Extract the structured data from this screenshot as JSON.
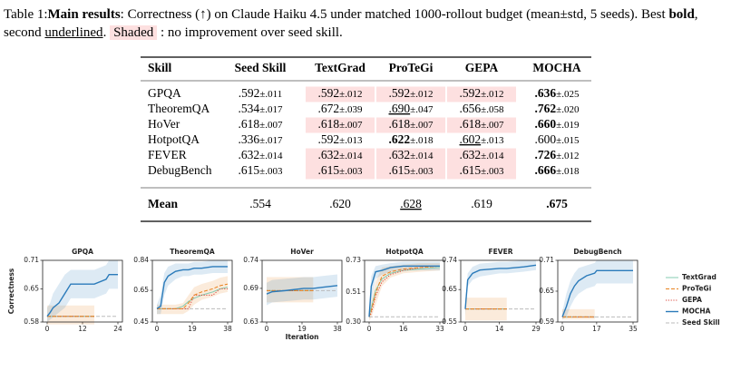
{
  "caption": [
    {
      "text": "Table 1:"
    },
    {
      "text": "Main results",
      "style": "bold"
    },
    {
      "text": ": Correctness (↑) on Claude Haiku 4.5 under matched 1000-rollout budget (mean±std, 5 seeds). Best "
    },
    {
      "text": "bold",
      "style": "bold"
    },
    {
      "text": ", second "
    },
    {
      "text": "underlined",
      "style": "underline"
    },
    {
      "text": ". "
    },
    {
      "text": "Shaded",
      "style": "shaded"
    },
    {
      "text": " : no improvement over seed skill."
    }
  ],
  "table": {
    "header": [
      "Skill",
      "Seed Skill",
      "TextGrad",
      "ProTeGi",
      "GEPA",
      "MOCHA"
    ],
    "rows": [
      [
        "GPQA",
        {
          "mean": ".592",
          "std": "±.011"
        },
        {
          "mean": ".592",
          "std": "±.012",
          "style": "shaded"
        },
        {
          "mean": ".592",
          "std": "±.012",
          "style": "shaded"
        },
        {
          "mean": ".592",
          "std": "±.012",
          "style": "shaded"
        },
        {
          "mean": ".636",
          "std": "±.025",
          "style": "bold"
        }
      ],
      [
        "TheoremQA",
        {
          "mean": ".534",
          "std": "±.017"
        },
        {
          "mean": ".672",
          "std": "±.039"
        },
        {
          "mean": ".690",
          "std": "±.047",
          "style": "underline"
        },
        {
          "mean": ".656",
          "std": "±.058"
        },
        {
          "mean": ".762",
          "std": "±.020",
          "style": "bold"
        }
      ],
      [
        "HoVer",
        {
          "mean": ".618",
          "std": "±.007"
        },
        {
          "mean": ".618",
          "std": "±.007",
          "style": "shaded"
        },
        {
          "mean": ".618",
          "std": "±.007",
          "style": "shaded"
        },
        {
          "mean": ".618",
          "std": "±.007",
          "style": "shaded"
        },
        {
          "mean": ".660",
          "std": "±.019",
          "style": "bold"
        }
      ],
      [
        "HotpotQA",
        {
          "mean": ".336",
          "std": "±.017"
        },
        {
          "mean": ".592",
          "std": "±.013"
        },
        {
          "mean": ".622",
          "std": "±.018",
          "style": "bold"
        },
        {
          "mean": ".602",
          "std": "±.013",
          "style": "underline"
        },
        {
          "mean": ".600",
          "std": "±.015"
        }
      ],
      [
        "FEVER",
        {
          "mean": ".632",
          "std": "±.014"
        },
        {
          "mean": ".632",
          "std": "±.014",
          "style": "shaded"
        },
        {
          "mean": ".632",
          "std": "±.014",
          "style": "shaded"
        },
        {
          "mean": ".632",
          "std": "±.014",
          "style": "shaded"
        },
        {
          "mean": ".726",
          "std": "±.012",
          "style": "bold"
        }
      ],
      [
        "DebugBench",
        {
          "mean": ".615",
          "std": "±.003"
        },
        {
          "mean": ".615",
          "std": "±.003",
          "style": "shaded"
        },
        {
          "mean": ".615",
          "std": "±.003",
          "style": "shaded"
        },
        {
          "mean": ".615",
          "std": "±.003",
          "style": "shaded"
        },
        {
          "mean": ".666",
          "std": "±.018",
          "style": "bold"
        }
      ]
    ],
    "footer": [
      "Mean",
      {
        "mean": ".554"
      },
      {
        "mean": ".620"
      },
      {
        "mean": ".628",
        "style": "underline"
      },
      {
        "mean": ".619"
      },
      {
        "mean": ".675",
        "style": "bold"
      }
    ]
  },
  "chart_data": [
    {
      "type": "line",
      "title": "GPQA",
      "ylabel": "Correctness",
      "x": [
        0,
        1,
        2,
        4,
        6,
        8,
        12,
        16,
        20,
        21,
        24
      ],
      "xlim": [
        0,
        24
      ],
      "xticks": [
        0,
        12,
        24
      ],
      "ylim": [
        0.58,
        0.71
      ],
      "yticks": [
        0.58,
        0.65,
        0.71
      ],
      "series": [
        {
          "name": "TextGrad",
          "color": "#86cbb2",
          "dash": "solid",
          "values": [
            0.592,
            0.592,
            0.592,
            0.592,
            0.592,
            0.592,
            0.592,
            0.592,
            null,
            null,
            null
          ]
        },
        {
          "name": "ProTeGi",
          "color": "#e8821e",
          "dash": "dashed",
          "values": [
            0.592,
            0.592,
            0.592,
            0.592,
            0.592,
            0.592,
            0.592,
            0.592,
            null,
            null,
            null
          ],
          "lower": [
            0.575,
            0.575,
            0.575,
            0.575,
            0.575,
            0.575,
            0.575,
            0.575,
            null,
            null,
            null
          ],
          "upper": [
            0.615,
            0.615,
            0.615,
            0.615,
            0.615,
            0.615,
            0.615,
            0.615,
            null,
            null,
            null
          ]
        },
        {
          "name": "GEPA",
          "color": "#d9453a",
          "dash": "dotted",
          "values": [
            0.592,
            0.592,
            0.592,
            0.592,
            0.592,
            0.592,
            0.592,
            0.592,
            null,
            null,
            null
          ]
        },
        {
          "name": "MOCHA",
          "color": "#2b7bba",
          "dash": "solid",
          "values": [
            0.592,
            0.6,
            0.61,
            0.62,
            0.64,
            0.66,
            0.66,
            0.66,
            0.67,
            0.68,
            0.68
          ],
          "lower": [
            0.58,
            0.585,
            0.59,
            0.6,
            0.61,
            0.63,
            0.63,
            0.63,
            0.64,
            0.65,
            0.65
          ],
          "upper": [
            0.61,
            0.62,
            0.64,
            0.66,
            0.68,
            0.69,
            0.69,
            0.69,
            0.7,
            0.71,
            0.71
          ]
        },
        {
          "name": "Seed Skill",
          "color": "#bbbbbb",
          "dash": "dashed",
          "values": [
            0.592,
            0.592,
            0.592,
            0.592,
            0.592,
            0.592,
            0.592,
            0.592,
            0.592,
            0.592,
            0.592
          ]
        }
      ]
    },
    {
      "type": "line",
      "title": "TheoremQA",
      "x": [
        0,
        2,
        4,
        6,
        10,
        14,
        17,
        20,
        24,
        30,
        34,
        38
      ],
      "xlim": [
        0,
        38
      ],
      "xticks": [
        0,
        19,
        38
      ],
      "ylim": [
        0.45,
        0.84
      ],
      "yticks": [
        0.45,
        0.65,
        0.84
      ],
      "series": [
        {
          "values": [
            0.534,
            0.534,
            0.534,
            0.534,
            0.534,
            0.55,
            0.58,
            0.6,
            0.62,
            0.64,
            0.66,
            0.67
          ]
        },
        {
          "values": [
            0.534,
            0.534,
            0.534,
            0.534,
            0.534,
            0.534,
            0.57,
            0.62,
            0.64,
            0.66,
            0.68,
            0.69
          ],
          "lower": [
            0.5,
            0.5,
            0.5,
            0.5,
            0.5,
            0.5,
            0.52,
            0.56,
            0.59,
            0.61,
            0.63,
            0.64
          ],
          "upper": [
            0.56,
            0.56,
            0.56,
            0.56,
            0.56,
            0.57,
            0.62,
            0.67,
            0.69,
            0.71,
            0.73,
            0.74
          ]
        },
        {
          "values": [
            0.534,
            0.534,
            0.534,
            0.534,
            0.534,
            0.534,
            0.534,
            0.62,
            0.62,
            0.62,
            0.66,
            0.66
          ]
        },
        {
          "values": [
            0.534,
            0.55,
            0.7,
            0.74,
            0.77,
            0.78,
            0.78,
            0.79,
            0.79,
            0.8,
            0.8,
            0.8
          ],
          "lower": [
            0.5,
            0.5,
            0.62,
            0.68,
            0.72,
            0.74,
            0.74,
            0.75,
            0.75,
            0.76,
            0.76,
            0.76
          ],
          "upper": [
            0.56,
            0.62,
            0.76,
            0.8,
            0.82,
            0.82,
            0.82,
            0.83,
            0.83,
            0.84,
            0.84,
            0.84
          ]
        },
        {
          "values": [
            0.534,
            0.534,
            0.534,
            0.534,
            0.534,
            0.534,
            0.534,
            0.534,
            0.534,
            0.534,
            0.534,
            0.534
          ]
        }
      ]
    },
    {
      "type": "line",
      "title": "HoVer",
      "xlabel": "Iteration",
      "x": [
        0,
        3,
        10,
        20,
        25,
        30,
        38
      ],
      "xlim": [
        0,
        38
      ],
      "xticks": [
        0,
        19,
        38
      ],
      "ylim": [
        0.63,
        0.74
      ],
      "yticks": [
        0.63,
        0.69,
        0.74
      ],
      "series": [
        {
          "values": [
            0.686,
            0.686,
            0.686,
            0.686,
            0.686,
            null,
            null
          ]
        },
        {
          "values": [
            0.686,
            0.686,
            0.686,
            0.686,
            0.686,
            null,
            null
          ],
          "lower": [
            0.665,
            0.665,
            0.665,
            0.665,
            0.665,
            null,
            null
          ],
          "upper": [
            0.71,
            0.71,
            0.71,
            0.71,
            0.71,
            null,
            null
          ]
        },
        {
          "values": [
            0.686,
            0.686,
            0.686,
            0.686,
            0.686,
            null,
            null
          ]
        },
        {
          "values": [
            0.68,
            0.684,
            0.686,
            0.69,
            0.69,
            0.692,
            0.695
          ],
          "lower": [
            0.66,
            0.665,
            0.667,
            0.67,
            0.67,
            0.672,
            0.675
          ],
          "upper": [
            0.7,
            0.705,
            0.707,
            0.71,
            0.71,
            0.712,
            0.715
          ]
        },
        {
          "values": [
            0.686,
            0.686,
            0.686,
            0.686,
            0.686,
            0.686,
            0.686
          ]
        }
      ]
    },
    {
      "type": "line",
      "title": "HotpotQA",
      "x": [
        0,
        1,
        3,
        6,
        10,
        16,
        24,
        33
      ],
      "xlim": [
        0,
        33
      ],
      "xticks": [
        0,
        16,
        33
      ],
      "ylim": [
        0.3,
        0.73
      ],
      "yticks": [
        {
          "value": 0.3,
          "label": "0.30"
        },
        0.51,
        0.73
      ],
      "series": [
        {
          "values": [
            0.336,
            0.4,
            0.52,
            0.6,
            0.64,
            0.66,
            0.67,
            0.68
          ]
        },
        {
          "values": [
            0.336,
            0.38,
            0.5,
            0.62,
            0.65,
            0.67,
            0.68,
            0.69
          ],
          "lower": [
            0.31,
            0.33,
            0.42,
            0.55,
            0.61,
            0.64,
            0.65,
            0.66
          ],
          "upper": [
            0.36,
            0.45,
            0.58,
            0.68,
            0.69,
            0.7,
            0.71,
            0.71
          ]
        },
        {
          "values": [
            0.336,
            0.36,
            0.48,
            0.58,
            0.63,
            0.66,
            0.68,
            0.69
          ]
        },
        {
          "values": [
            0.336,
            0.55,
            0.65,
            0.66,
            0.68,
            0.69,
            0.69,
            0.69
          ],
          "lower": [
            0.31,
            0.45,
            0.6,
            0.63,
            0.65,
            0.66,
            0.66,
            0.66
          ],
          "upper": [
            0.36,
            0.62,
            0.69,
            0.7,
            0.71,
            0.72,
            0.72,
            0.72
          ]
        },
        {
          "values": [
            0.336,
            0.336,
            0.336,
            0.336,
            0.336,
            0.336,
            0.336,
            0.336
          ]
        }
      ]
    },
    {
      "type": "line",
      "title": "FEVER",
      "x": [
        0,
        1,
        3,
        6,
        14,
        17,
        24,
        29
      ],
      "xlim": [
        0,
        29
      ],
      "xticks": [
        0,
        14,
        29
      ],
      "ylim": [
        0.55,
        0.74
      ],
      "yticks": [
        0.55,
        0.65,
        0.74
      ],
      "series": [
        {
          "values": [
            0.59,
            0.59,
            0.59,
            0.59,
            0.59,
            0.59,
            null,
            null
          ]
        },
        {
          "values": [
            0.59,
            0.59,
            0.59,
            0.59,
            0.59,
            0.59,
            null,
            null
          ],
          "lower": [
            0.555,
            0.555,
            0.555,
            0.555,
            0.555,
            0.555,
            null,
            null
          ],
          "upper": [
            0.625,
            0.625,
            0.625,
            0.625,
            0.625,
            0.625,
            null,
            null
          ]
        },
        {
          "values": [
            0.59,
            0.59,
            0.59,
            0.59,
            0.59,
            0.59,
            null,
            null
          ]
        },
        {
          "values": [
            0.59,
            0.68,
            0.7,
            0.71,
            0.715,
            0.715,
            0.72,
            0.725
          ],
          "lower": [
            0.57,
            0.66,
            0.68,
            0.69,
            0.7,
            0.7,
            0.705,
            0.71
          ],
          "upper": [
            0.61,
            0.7,
            0.72,
            0.73,
            0.735,
            0.735,
            0.74,
            0.74
          ]
        },
        {
          "values": [
            0.59,
            0.59,
            0.59,
            0.59,
            0.59,
            0.59,
            0.59,
            0.59
          ]
        }
      ]
    },
    {
      "type": "line",
      "title": "DebugBench",
      "x": [
        0,
        2,
        4,
        6,
        8,
        12,
        16,
        17,
        35
      ],
      "xlim": [
        0,
        35
      ],
      "xticks": [
        0,
        17,
        35
      ],
      "ylim": [
        0.59,
        0.71
      ],
      "yticks": [
        0.59,
        0.65,
        0.71
      ],
      "series": [
        {
          "values": [
            0.6,
            0.6,
            0.6,
            0.6,
            0.6,
            0.6,
            0.6,
            null,
            null
          ]
        },
        {
          "values": [
            0.6,
            0.6,
            0.6,
            0.6,
            0.6,
            0.6,
            0.6,
            null,
            null
          ],
          "lower": [
            0.595,
            0.595,
            0.595,
            0.595,
            0.595,
            0.595,
            0.595,
            null,
            null
          ],
          "upper": [
            0.615,
            0.615,
            0.615,
            0.615,
            0.615,
            0.615,
            0.615,
            null,
            null
          ]
        },
        {
          "values": [
            0.6,
            0.6,
            0.6,
            0.6,
            0.6,
            0.6,
            0.6,
            null,
            null
          ]
        },
        {
          "values": [
            0.6,
            0.62,
            0.645,
            0.66,
            0.67,
            0.68,
            0.685,
            0.69,
            0.69
          ],
          "lower": [
            0.595,
            0.6,
            0.62,
            0.635,
            0.645,
            0.655,
            0.66,
            0.665,
            0.665
          ],
          "upper": [
            0.61,
            0.645,
            0.67,
            0.685,
            0.695,
            0.7,
            0.705,
            0.71,
            0.71
          ]
        },
        {
          "values": [
            0.6,
            0.6,
            0.6,
            0.6,
            0.6,
            0.6,
            0.6,
            0.6,
            0.6
          ]
        }
      ]
    }
  ]
}
